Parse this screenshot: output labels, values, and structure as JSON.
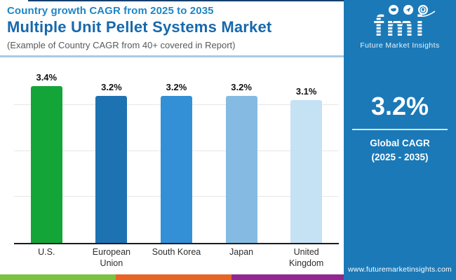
{
  "header": {
    "subtitle": "Country growth CAGR from 2025 to 2035",
    "title": "Multiple Unit Pellet Systems Market",
    "note": "(Example of Country CAGR from 40+ covered in Report)"
  },
  "chart_data": {
    "type": "bar",
    "title": "Country growth CAGR from 2025 to 2035",
    "categories": [
      "U.S.",
      "European Union",
      "South Korea",
      "Japan",
      "United Kingdom"
    ],
    "values": [
      3.4,
      3.2,
      3.2,
      3.2,
      3.1
    ],
    "value_labels": [
      "3.4%",
      "3.2%",
      "3.2%",
      "3.2%",
      "3.1%"
    ],
    "bar_colors": [
      "#13a538",
      "#1d72b2",
      "#3390d6",
      "#85bbe2",
      "#c5e1f4"
    ],
    "xlabel": "",
    "ylabel": "",
    "ylim": [
      0,
      4
    ],
    "gridlines": [
      1,
      2,
      3
    ],
    "grid": true,
    "legend_position": "none"
  },
  "sidebar": {
    "bg_color": "#1b79b7",
    "logo": {
      "text": "fmi",
      "tagline": "Future Market Insights",
      "icons": [
        "usa-map-icon",
        "paper-plane-icon",
        "globe-pin-icon"
      ]
    },
    "stat_value": "3.2%",
    "stat_label_line1": "Global CAGR",
    "stat_label_line2": "(2025 - 2035)",
    "website": "www.futuremarketinsights.com"
  },
  "footer_stripe_colors": [
    "#7cc142",
    "#e66426",
    "#92278f"
  ]
}
